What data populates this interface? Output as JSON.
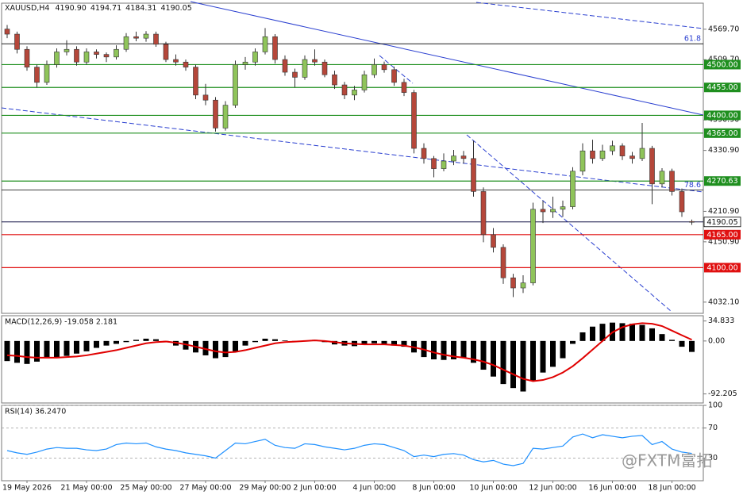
{
  "watermark": "@FXTM富拓",
  "chart_data": [
    {
      "type": "candlestick",
      "title": "XAUUSD,H4",
      "ohlc_labels": [
        "4190.90",
        "4194.71",
        "4184.31",
        "4190.05"
      ],
      "up_color": "#8fc45a",
      "down_color": "#b5473a",
      "categories": [
        null,
        null,
        "19 May 2026",
        null,
        null,
        null,
        null,
        null,
        "21 May 00:00",
        null,
        null,
        null,
        null,
        null,
        "25 May 00:00",
        null,
        null,
        null,
        null,
        null,
        "27 May 00:00",
        null,
        null,
        null,
        null,
        null,
        "29 May 00:00",
        null,
        null,
        null,
        null,
        "2 Jun 00:00",
        null,
        null,
        null,
        null,
        null,
        "4 Jun 00:00",
        null,
        null,
        null,
        null,
        null,
        "8 Jun 00:00",
        null,
        null,
        null,
        null,
        null,
        "10 Jun 00:00",
        null,
        null,
        null,
        null,
        null,
        "12 Jun 00:00",
        null,
        null,
        null,
        null,
        null,
        "16 Jun 00:00",
        null,
        null,
        null,
        null,
        null,
        "18 Jun 00:00",
        null,
        null
      ],
      "ohlc": [
        [
          4570,
          4578,
          4552,
          4560
        ],
        [
          4560,
          4565,
          4522,
          4530
        ],
        [
          4530,
          4536,
          4488,
          4495
        ],
        [
          4495,
          4500,
          4455,
          4465
        ],
        [
          4465,
          4508,
          4460,
          4500
        ],
        [
          4500,
          4532,
          4494,
          4525
        ],
        [
          4525,
          4548,
          4518,
          4530
        ],
        [
          4530,
          4536,
          4498,
          4505
        ],
        [
          4505,
          4532,
          4500,
          4525
        ],
        [
          4525,
          4530,
          4512,
          4520
        ],
        [
          4520,
          4524,
          4505,
          4515
        ],
        [
          4515,
          4538,
          4510,
          4530
        ],
        [
          4530,
          4562,
          4525,
          4555
        ],
        [
          4555,
          4565,
          4546,
          4552
        ],
        [
          4552,
          4566,
          4545,
          4560
        ],
        [
          4560,
          4565,
          4535,
          4540
        ],
        [
          4540,
          4545,
          4505,
          4510
        ],
        [
          4510,
          4520,
          4498,
          4505
        ],
        [
          4505,
          4510,
          4488,
          4495
        ],
        [
          4495,
          4500,
          4432,
          4440
        ],
        [
          4440,
          4462,
          4420,
          4430
        ],
        [
          4430,
          4436,
          4368,
          4375
        ],
        [
          4375,
          4428,
          4370,
          4420
        ],
        [
          4420,
          4508,
          4415,
          4500
        ],
        [
          4500,
          4515,
          4490,
          4505
        ],
        [
          4505,
          4532,
          4498,
          4525
        ],
        [
          4525,
          4572,
          4520,
          4555
        ],
        [
          4555,
          4560,
          4502,
          4510
        ],
        [
          4510,
          4518,
          4478,
          4485
        ],
        [
          4485,
          4492,
          4455,
          4475
        ],
        [
          4475,
          4518,
          4470,
          4510
        ],
        [
          4510,
          4530,
          4498,
          4505
        ],
        [
          4505,
          4510,
          4475,
          4480
        ],
        [
          4480,
          4488,
          4452,
          4460
        ],
        [
          4460,
          4466,
          4432,
          4440
        ],
        [
          4440,
          4458,
          4430,
          4450
        ],
        [
          4450,
          4488,
          4445,
          4480
        ],
        [
          4480,
          4512,
          4474,
          4500
        ],
        [
          4500,
          4506,
          4484,
          4490
        ],
        [
          4490,
          4496,
          4458,
          4465
        ],
        [
          4465,
          4472,
          4438,
          4445
        ],
        [
          4445,
          4450,
          4325,
          4335
        ],
        [
          4335,
          4345,
          4305,
          4315
        ],
        [
          4315,
          4320,
          4278,
          4295
        ],
        [
          4295,
          4325,
          4290,
          4310
        ],
        [
          4310,
          4332,
          4302,
          4320
        ],
        [
          4320,
          4330,
          4305,
          4315
        ],
        [
          4315,
          4350,
          4240,
          4250
        ],
        [
          4250,
          4258,
          4150,
          4165
        ],
        [
          4165,
          4178,
          4130,
          4140
        ],
        [
          4140,
          4146,
          4068,
          4080
        ],
        [
          4080,
          4088,
          4042,
          4060
        ],
        [
          4060,
          4085,
          4050,
          4070
        ],
        [
          4070,
          4228,
          4065,
          4215
        ],
        [
          4215,
          4232,
          4188,
          4210
        ],
        [
          4210,
          4240,
          4198,
          4215
        ],
        [
          4215,
          4232,
          4200,
          4220
        ],
        [
          4220,
          4298,
          4215,
          4290
        ],
        [
          4290,
          4345,
          4282,
          4330
        ],
        [
          4330,
          4352,
          4305,
          4315
        ],
        [
          4315,
          4342,
          4310,
          4330
        ],
        [
          4330,
          4350,
          4322,
          4340
        ],
        [
          4340,
          4345,
          4312,
          4320
        ],
        [
          4320,
          4328,
          4305,
          4315
        ],
        [
          4315,
          4385,
          4310,
          4335
        ],
        [
          4335,
          4340,
          4225,
          4265
        ],
        [
          4265,
          4296,
          4258,
          4290
        ],
        [
          4290,
          4295,
          4242,
          4250
        ],
        [
          4250,
          4256,
          4200,
          4210
        ],
        [
          4190.9,
          4194.71,
          4184.31,
          4190.05
        ]
      ],
      "ylim": [
        4010,
        4621
      ],
      "yticks": [
        {
          "value": 4569.7,
          "label": "4569.70"
        },
        {
          "value": 4509.7,
          "label": "4509.70"
        },
        {
          "value": 4390.9,
          "label": "4390.90"
        },
        {
          "value": 4330.9,
          "label": "4330.90"
        },
        {
          "value": 4210.9,
          "label": "4210.90"
        },
        {
          "value": 4150.9,
          "label": "4150.90"
        },
        {
          "value": 4032.1,
          "label": "4032.10"
        }
      ],
      "fib_levels": [
        {
          "value": 4541,
          "label": "61.8"
        },
        {
          "value": 4253,
          "label": "78.6"
        }
      ],
      "levels": [
        {
          "value": 4500,
          "label": "4500.00",
          "color": "#1f8f1f"
        },
        {
          "value": 4455,
          "label": "4455.00",
          "color": "#1f8f1f"
        },
        {
          "value": 4400,
          "label": "4400.00",
          "color": "#1f8f1f"
        },
        {
          "value": 4365,
          "label": "4365.00",
          "color": "#1f8f1f"
        },
        {
          "value": 4270.63,
          "label": "4270.63",
          "color": "#1f8f1f"
        },
        {
          "value": 4165,
          "label": "4165.00",
          "color": "#e01010"
        },
        {
          "value": 4100,
          "label": "4100.00",
          "color": "#e01010"
        }
      ],
      "current": {
        "value": 4190.05,
        "label": "4190.05",
        "color": "#0a0a40"
      }
    },
    {
      "type": "macd",
      "title": "MACD(12,26,9) -19.058 2.181",
      "color": "#000000",
      "signal_color": "#e00000",
      "values": [
        -35,
        -38,
        -40,
        -36,
        -30,
        -28,
        -26,
        -22,
        -18,
        -12,
        -8,
        -5,
        -2,
        2,
        4,
        3,
        -2,
        -8,
        -15,
        -20,
        -25,
        -30,
        -28,
        -18,
        -8,
        -2,
        4,
        3,
        1,
        -1,
        0,
        2,
        -2,
        -6,
        -8,
        -9,
        -6,
        -4,
        -5,
        -8,
        -10,
        -20,
        -28,
        -32,
        -33,
        -32,
        -30,
        -38,
        -50,
        -62,
        -75,
        -82,
        -88,
        -70,
        -55,
        -45,
        -30,
        -5,
        15,
        25,
        30,
        32,
        31,
        30,
        28,
        22,
        12,
        2,
        -10,
        -19.058
      ],
      "signal": [
        -25,
        -26,
        -28,
        -29,
        -29,
        -29,
        -28,
        -27,
        -25,
        -22,
        -19,
        -16,
        -12,
        -8,
        -4,
        -2,
        -1,
        -3,
        -6,
        -10,
        -14,
        -18,
        -20,
        -19,
        -16,
        -12,
        -8,
        -4,
        -2,
        -1,
        0,
        1,
        0,
        -2,
        -4,
        -5,
        -6,
        -6,
        -6,
        -7,
        -8,
        -11,
        -15,
        -20,
        -24,
        -27,
        -29,
        -32,
        -36,
        -42,
        -50,
        -58,
        -66,
        -70,
        -68,
        -63,
        -55,
        -44,
        -30,
        -15,
        0,
        15,
        24,
        29,
        31,
        30,
        26,
        18,
        10,
        2.181
      ],
      "ylim": [
        -108,
        44
      ],
      "yticks": [
        {
          "value": 34.833,
          "label": "34.833"
        },
        {
          "value": 0,
          "label": "0.00"
        },
        {
          "value": -92.205,
          "label": "-92.205"
        }
      ]
    },
    {
      "type": "rsi",
      "title": "RSI(14) 36.2470",
      "color": "#1e90ff",
      "values": [
        40,
        37,
        35,
        38,
        42,
        44,
        43,
        43,
        41,
        40,
        42,
        48,
        50,
        49,
        50,
        45,
        42,
        40,
        37,
        35,
        33,
        30,
        40,
        50,
        49,
        52,
        55,
        47,
        44,
        43,
        49,
        48,
        45,
        43,
        41,
        43,
        47,
        49,
        48,
        44,
        40,
        32,
        34,
        32,
        35,
        36,
        34,
        28,
        25,
        27,
        22,
        20,
        23,
        43,
        42,
        44,
        46,
        58,
        62,
        57,
        61,
        59,
        57,
        59,
        60,
        48,
        52,
        42,
        38,
        36.247
      ],
      "ylim": [
        0,
        100
      ],
      "yticks": [
        100,
        70,
        30
      ]
    }
  ]
}
